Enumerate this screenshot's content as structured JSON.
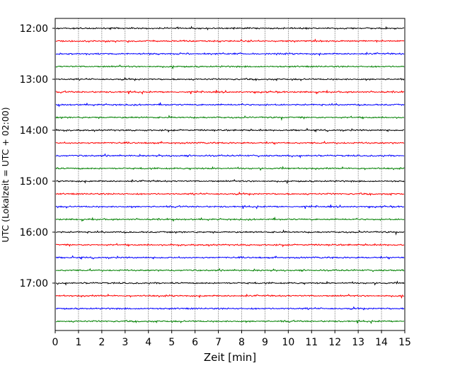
{
  "chart_data": {
    "type": "line",
    "title": "",
    "xlabel": "Zeit  [min]",
    "ylabel": "UTC (Lokalzeit = UTC + 02:00)",
    "xlim": [
      0,
      15
    ],
    "x_ticks": [
      0,
      1,
      2,
      3,
      4,
      5,
      6,
      7,
      8,
      9,
      10,
      11,
      12,
      13,
      14,
      15
    ],
    "x_grid": true,
    "y_grid": false,
    "y_ticks": [
      {
        "label": "12:00",
        "row": 0
      },
      {
        "label": "13:00",
        "row": 4
      },
      {
        "label": "14:00",
        "row": 8
      },
      {
        "label": "15:00",
        "row": 12
      },
      {
        "label": "16:00",
        "row": 16
      },
      {
        "label": "17:00",
        "row": 20
      }
    ],
    "row_minutes": 15,
    "trace_colors": [
      "#000000",
      "#ff0000",
      "#0000ff",
      "#008000"
    ],
    "traces": [
      {
        "start": "12:00",
        "color": "#000000"
      },
      {
        "start": "12:15",
        "color": "#ff0000"
      },
      {
        "start": "12:30",
        "color": "#0000ff"
      },
      {
        "start": "12:45",
        "color": "#008000"
      },
      {
        "start": "13:00",
        "color": "#000000"
      },
      {
        "start": "13:15",
        "color": "#ff0000"
      },
      {
        "start": "13:30",
        "color": "#0000ff"
      },
      {
        "start": "13:45",
        "color": "#008000"
      },
      {
        "start": "14:00",
        "color": "#000000"
      },
      {
        "start": "14:15",
        "color": "#ff0000"
      },
      {
        "start": "14:30",
        "color": "#0000ff"
      },
      {
        "start": "14:45",
        "color": "#008000"
      },
      {
        "start": "15:00",
        "color": "#000000"
      },
      {
        "start": "15:15",
        "color": "#ff0000"
      },
      {
        "start": "15:30",
        "color": "#0000ff"
      },
      {
        "start": "15:45",
        "color": "#008000"
      },
      {
        "start": "16:00",
        "color": "#000000"
      },
      {
        "start": "16:15",
        "color": "#ff0000"
      },
      {
        "start": "16:30",
        "color": "#0000ff"
      },
      {
        "start": "16:45",
        "color": "#008000"
      },
      {
        "start": "17:00",
        "color": "#000000"
      },
      {
        "start": "17:15",
        "color": "#ff0000"
      },
      {
        "start": "17:30",
        "color": "#0000ff"
      },
      {
        "start": "17:45",
        "color": "#008000"
      }
    ]
  }
}
